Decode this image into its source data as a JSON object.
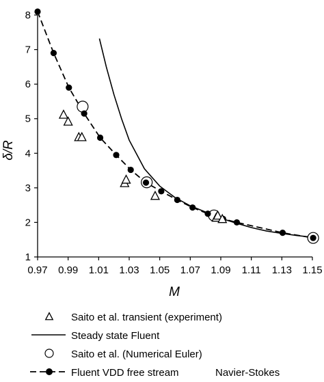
{
  "chart_data": {
    "type": "scatter",
    "xlabel": "M",
    "ylabel": "δ/R",
    "xlim": [
      0.97,
      1.15
    ],
    "ylim": [
      1,
      8
    ],
    "xticks": [
      "0.97",
      "0.99",
      "1.01",
      "1.03",
      "1.05",
      "1.07",
      "1.09",
      "1.11",
      "1.13",
      "1.15"
    ],
    "yticks": [
      "1",
      "2",
      "3",
      "4",
      "5",
      "6",
      "7",
      "8"
    ],
    "grid": false,
    "legend_position": "bottom",
    "series": [
      {
        "name": "Saito et al. transient (experiment)",
        "style": "triangle",
        "x": [
          0.987,
          0.99,
          0.997,
          0.999,
          1.027,
          1.028,
          1.047,
          1.087,
          1.088,
          1.091
        ],
        "y": [
          5.1,
          4.9,
          4.45,
          4.45,
          3.12,
          3.22,
          2.75,
          2.12,
          2.18,
          2.08
        ]
      },
      {
        "name": "Steady state Fluent",
        "style": "solid-line",
        "x": [
          1.0105,
          1.015,
          1.02,
          1.025,
          1.03,
          1.04,
          1.05,
          1.06,
          1.07,
          1.08,
          1.09,
          1.1,
          1.11,
          1.12,
          1.13,
          1.14,
          1.15
        ],
        "y": [
          7.32,
          6.5,
          5.7,
          5.0,
          4.38,
          3.55,
          3.05,
          2.72,
          2.48,
          2.3,
          2.12,
          1.98,
          1.85,
          1.75,
          1.68,
          1.62,
          1.57
        ]
      },
      {
        "name": "Saito et al. (Numerical Euler)",
        "style": "open-circle",
        "x": [
          0.9995,
          1.0415,
          1.0855,
          1.1505
        ],
        "y": [
          5.35,
          3.16,
          2.2,
          1.55
        ]
      },
      {
        "name": "Fluent VDD free stream",
        "style": "dashed-line-filled-circle",
        "x": [
          0.97,
          0.9805,
          0.9905,
          1.0005,
          1.011,
          1.0215,
          1.031,
          1.041,
          1.051,
          1.0615,
          1.0715,
          1.0815,
          1.0915,
          1.1005,
          1.1305,
          1.1505
        ],
        "y": [
          8.1,
          6.9,
          5.9,
          5.15,
          4.45,
          3.95,
          3.52,
          3.15,
          2.9,
          2.65,
          2.43,
          2.25,
          2.1,
          2.0,
          1.7,
          1.55
        ]
      }
    ],
    "legend_suffix": "Navier-Stokes"
  }
}
